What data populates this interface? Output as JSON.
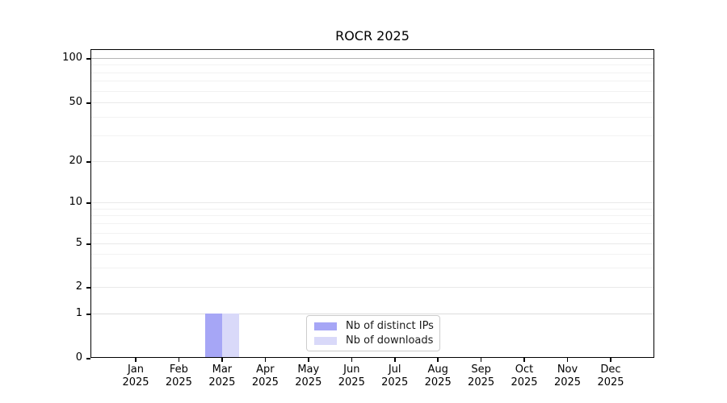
{
  "title": "ROCR 2025",
  "chart_data": {
    "type": "bar",
    "title": "ROCR 2025",
    "xlabel": "",
    "ylabel": "",
    "categories": [
      "Jan",
      "Feb",
      "Mar",
      "Apr",
      "May",
      "Jun",
      "Jul",
      "Aug",
      "Sep",
      "Oct",
      "Nov",
      "Dec"
    ],
    "x_year_label": "2025",
    "series": [
      {
        "name": "Nb of distinct IPs",
        "color": "#a6a6f6",
        "values": [
          0,
          0,
          1,
          0,
          0,
          0,
          0,
          0,
          0,
          0,
          0,
          0
        ]
      },
      {
        "name": "Nb of downloads",
        "color": "#d9d9f9",
        "values": [
          0,
          0,
          1,
          0,
          0,
          0,
          0,
          0,
          0,
          0,
          0,
          0
        ]
      }
    ],
    "y_axis": {
      "scale": "log above 1, linear 0-1",
      "ylim": [
        0,
        115
      ],
      "major_ticks": [
        0,
        1,
        2,
        5,
        10,
        20,
        50,
        100
      ],
      "minor_gridlines": [
        3,
        4,
        6,
        7,
        8,
        9,
        30,
        40,
        60,
        70,
        80,
        90
      ]
    },
    "grid": "horizontal",
    "legend_position": "lower center"
  }
}
